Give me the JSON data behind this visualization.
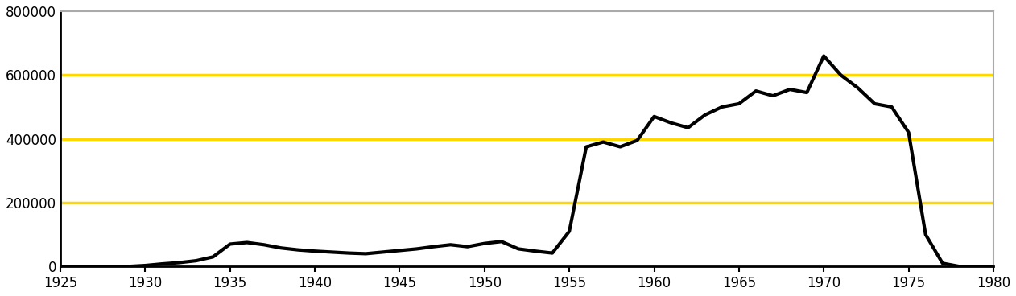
{
  "x": [
    1925,
    1929,
    1930,
    1931,
    1932,
    1933,
    1934,
    1935,
    1936,
    1937,
    1938,
    1939,
    1940,
    1941,
    1942,
    1943,
    1944,
    1945,
    1946,
    1947,
    1948,
    1949,
    1950,
    1951,
    1952,
    1953,
    1954,
    1955,
    1956,
    1957,
    1958,
    1959,
    1960,
    1961,
    1962,
    1963,
    1964,
    1965,
    1966,
    1967,
    1968,
    1969,
    1970,
    1971,
    1972,
    1973,
    1974,
    1975,
    1976,
    1977,
    1978,
    1979,
    1980
  ],
  "y": [
    0,
    0,
    3000,
    8000,
    12000,
    18000,
    30000,
    70000,
    75000,
    68000,
    58000,
    52000,
    48000,
    45000,
    42000,
    40000,
    45000,
    50000,
    55000,
    62000,
    68000,
    62000,
    72000,
    78000,
    55000,
    48000,
    42000,
    110000,
    375000,
    390000,
    375000,
    395000,
    470000,
    450000,
    435000,
    475000,
    500000,
    510000,
    550000,
    535000,
    555000,
    545000,
    660000,
    600000,
    560000,
    510000,
    500000,
    420000,
    100000,
    10000,
    0,
    0,
    0
  ],
  "line_color": "#000000",
  "line_width": 3.0,
  "background_color": "#ffffff",
  "grid_color": "#FFD700",
  "grid_linewidth": 2.5,
  "grid_yticks": [
    200000,
    400000,
    600000
  ],
  "top_border_color": "#aaaaaa",
  "right_border_color": "#aaaaaa",
  "xlim": [
    1925,
    1980
  ],
  "ylim": [
    0,
    800000
  ],
  "yticks": [
    0,
    200000,
    400000,
    600000,
    800000
  ],
  "xticks": [
    1925,
    1930,
    1935,
    1940,
    1945,
    1950,
    1955,
    1960,
    1965,
    1970,
    1975,
    1980
  ],
  "tick_fontsize": 12
}
